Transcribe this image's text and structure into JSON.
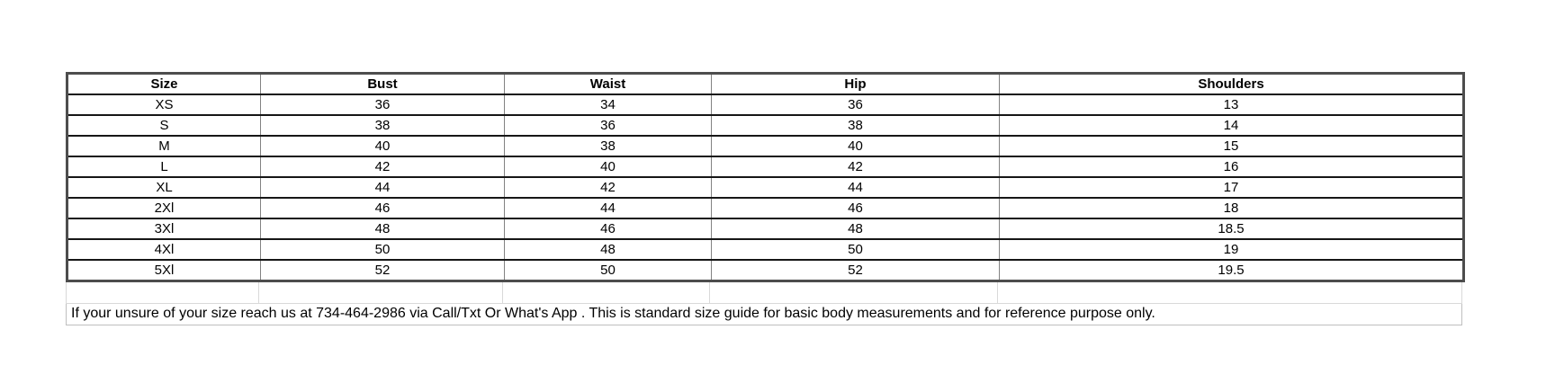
{
  "size_chart": {
    "columns": [
      "Size",
      "Bust",
      "Waist",
      "Hip",
      "Shoulders"
    ],
    "rows": [
      [
        "XS",
        "36",
        "34",
        "36",
        "13"
      ],
      [
        "S",
        "38",
        "36",
        "38",
        "14"
      ],
      [
        "M",
        "40",
        "38",
        "40",
        "15"
      ],
      [
        "L",
        "42",
        "40",
        "42",
        "16"
      ],
      [
        "XL",
        "44",
        "42",
        "44",
        "17"
      ],
      [
        "2Xl",
        "46",
        "44",
        "46",
        "18"
      ],
      [
        "3Xl",
        "48",
        "46",
        "48",
        "18.5"
      ],
      [
        "4Xl",
        "50",
        "48",
        "50",
        "19"
      ],
      [
        "5Xl",
        "52",
        "50",
        "52",
        "19.5"
      ]
    ]
  },
  "note": {
    "text": "If your unsure of your size reach us at 734-464-2986 via Call/Txt Or What's App . This is standard size guide for basic body measurements and for reference purpose only.",
    "phone": "734-464-2986"
  },
  "colors": {
    "background": "#ffffff",
    "text": "#000000",
    "row_border": "#161616",
    "column_border": "#828282",
    "outer_border": "#4d4d4d",
    "light_border": "#d9d9d9",
    "note_border": "#bfbfbf"
  }
}
